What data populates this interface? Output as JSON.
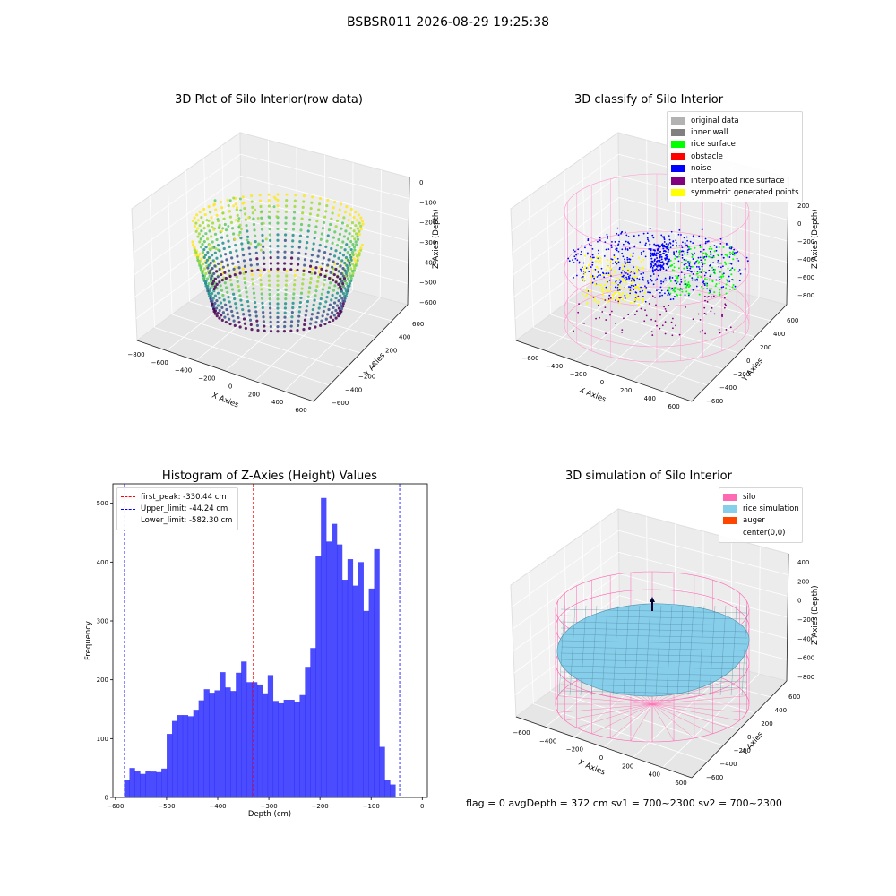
{
  "suptitle": "BSBSR011 2026-08-29 19:25:38",
  "panel1": {
    "title": "3D Plot of Silo Interior(row data)",
    "xlabel": "X Axies",
    "ylabel": "Y Axies",
    "zlabel": "Z Axies (Depth)",
    "xticks": [
      "−800",
      "−600",
      "−400",
      "−200",
      "0",
      "200",
      "400",
      "600"
    ],
    "yticks": [
      "600",
      "400",
      "200",
      "0",
      "−200",
      "−400",
      "−600"
    ],
    "zticks": [
      "0",
      "−100",
      "−200",
      "−300",
      "−400",
      "−500",
      "−600"
    ]
  },
  "panel2": {
    "title": "3D classify of Silo Interior",
    "xlabel": "X Axies",
    "ylabel": "Y Axies",
    "zlabel": "Z Axies (Depth)",
    "xticks": [
      "−600",
      "−400",
      "−200",
      "0",
      "200",
      "400",
      "600"
    ],
    "yticks": [
      "600",
      "400",
      "200",
      "0",
      "−200",
      "−400",
      "−600"
    ],
    "zticks": [
      "200",
      "0",
      "−200",
      "−400",
      "−600",
      "−800"
    ],
    "legend": [
      {
        "label": "original data",
        "color": "#b3b3b3"
      },
      {
        "label": "inner wall",
        "color": "#808080"
      },
      {
        "label": "rice surface",
        "color": "#00ff00"
      },
      {
        "label": "obstacle",
        "color": "#ff0000"
      },
      {
        "label": "noise",
        "color": "#0000ff"
      },
      {
        "label": "interpolated rice surface",
        "color": "#800080"
      },
      {
        "label": "symmetric generated points",
        "color": "#ffff00"
      }
    ]
  },
  "panel4": {
    "title": "3D simulation of Silo Interior",
    "xlabel": "X Axies",
    "ylabel": "Y Axies",
    "zlabel": "Z Axies (Depth)",
    "xticks": [
      "−600",
      "−400",
      "−200",
      "0",
      "200",
      "400",
      "600"
    ],
    "yticks": [
      "600",
      "400",
      "200",
      "0",
      "−200",
      "−400",
      "−600"
    ],
    "zticks": [
      "400",
      "200",
      "0",
      "−200",
      "−400",
      "−600",
      "−800"
    ],
    "legend": [
      {
        "label": "silo",
        "color": "#ff69b4"
      },
      {
        "label": "rice simulation",
        "color": "#87ceeb"
      },
      {
        "label": "auger",
        "color": "#ff4500"
      },
      {
        "label": "center(0,0)",
        "color": ""
      }
    ]
  },
  "footer": "flag = 0     avgDepth = 372 cm  sv1 = 700~2300  sv2 = 700~2300",
  "chart_data": [
    {
      "type": "bar",
      "title": "Histogram of Z-Axies (Height) Values",
      "xlabel": "Depth (cm)",
      "ylabel": "Frequency",
      "xlim": [
        -605,
        10
      ],
      "ylim": [
        0,
        533
      ],
      "xticks": [
        "−600",
        "−500",
        "−400",
        "−300",
        "−200",
        "−100",
        "0"
      ],
      "yticks": [
        "0",
        "100",
        "200",
        "300",
        "400",
        "500"
      ],
      "bin_start": -583,
      "bin_width": 10.4,
      "values": [
        30,
        50,
        45,
        40,
        45,
        44,
        43,
        49,
        108,
        130,
        140,
        140,
        138,
        149,
        165,
        184,
        178,
        182,
        213,
        187,
        181,
        212,
        231,
        196,
        196,
        192,
        177,
        208,
        164,
        160,
        166,
        166,
        163,
        174,
        222,
        254,
        410,
        509,
        435,
        465,
        430,
        370,
        405,
        360,
        400,
        317,
        355,
        422,
        86,
        30,
        22
      ],
      "color": "#0000ff",
      "lines": [
        {
          "label": "first_peak: -330.44 cm",
          "x": -330.44,
          "color": "#ff0000"
        },
        {
          "label": "Upper_limit: -44.24 cm",
          "x": -44.24,
          "color": "#0000ff"
        },
        {
          "label": "Lower_limit: -582.30 cm",
          "x": -582.3,
          "color": "#0000ff"
        }
      ],
      "legend": "upper-left"
    }
  ]
}
